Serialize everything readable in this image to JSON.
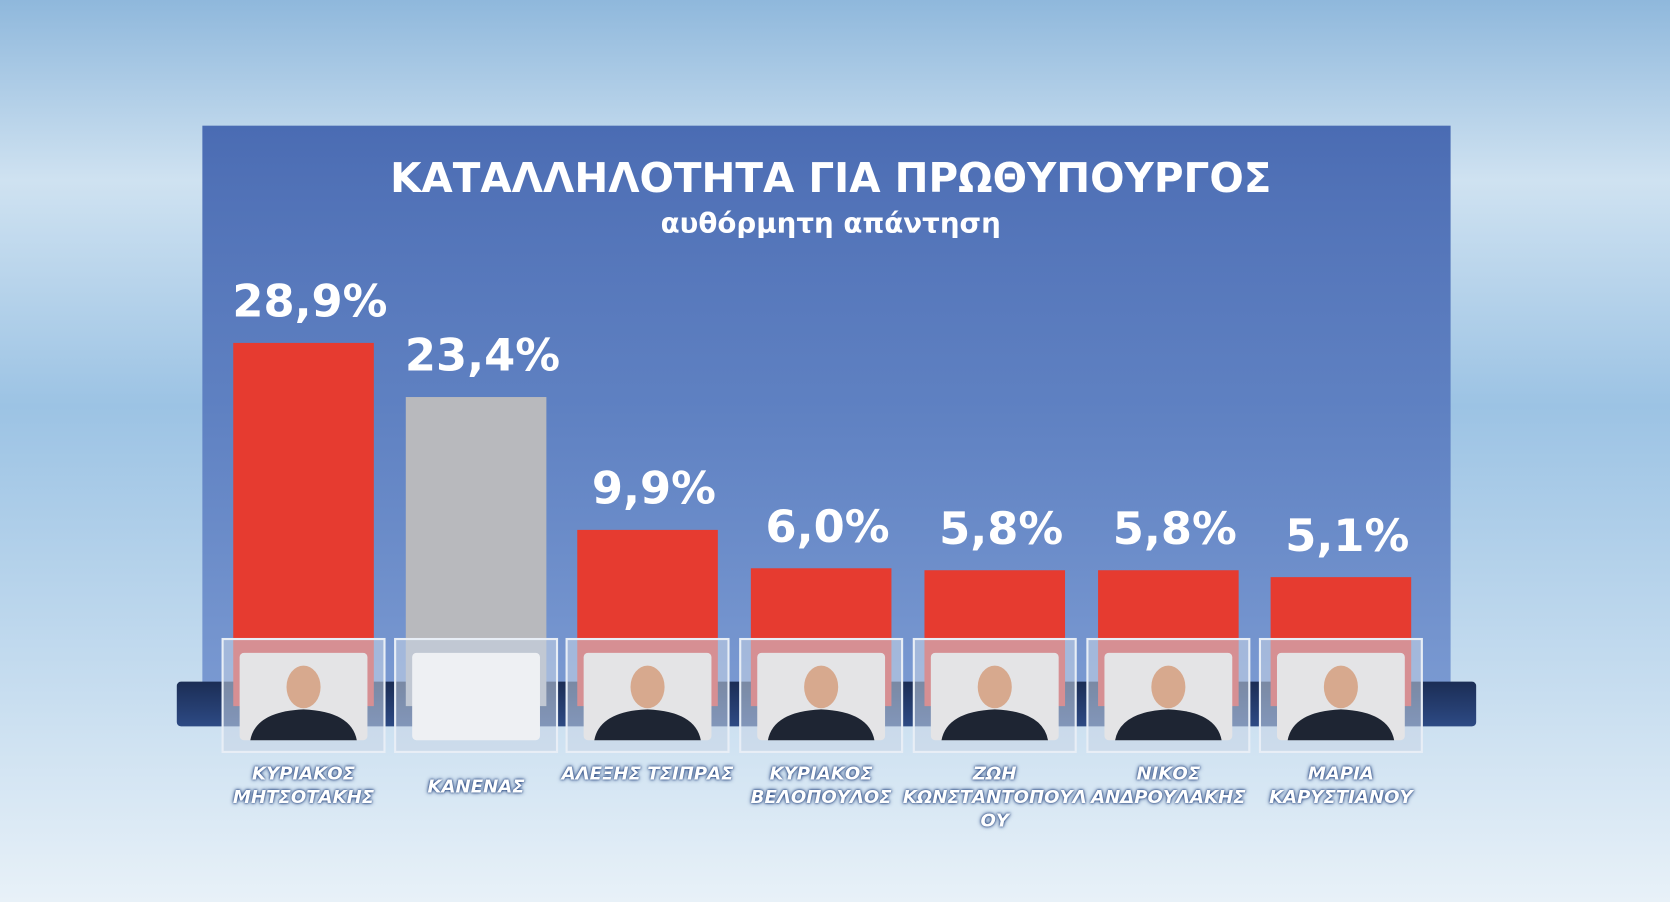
{
  "chart_data": {
    "type": "bar",
    "title": "ΚΑΤΑΛΛΗΛΟΤΗΤΑ  ΓΙΑ  ΠΡΩΘΥΠΟΥΡΓΟΣ",
    "subtitle": "αυθόρμητη  απάντηση",
    "categories": [
      "ΚΥΡΙΑΚΟΣ ΜΗΤΣΟΤΑΚΗΣ",
      "ΚΑΝΕΝΑΣ",
      "ΑΛΕΞΗΣ ΤΣΙΠΡΑΣ",
      "ΚΥΡΙΑΚΟΣ ΒΕΛΟΠΟΥΛΟΣ",
      "ΖΩΗ ΚΩΝΣΤΑΝΤΟΠΟΥΛΟΥ",
      "ΝΙΚΟΣ ΑΝΔΡΟΥΛΑΚΗΣ",
      "ΜΑΡΙΑ ΚΑΡΥΣΤΙΑΝΟΥ"
    ],
    "values": [
      28.9,
      23.4,
      9.9,
      6.0,
      5.8,
      5.8,
      5.1
    ],
    "value_labels": [
      "28,9%",
      "23,4%",
      "9,9%",
      "6,0%",
      "5,8%",
      "5,8%",
      "5,1%"
    ],
    "colors": [
      "#e63b30",
      "#b8b9bd",
      "#e63b30",
      "#e63b30",
      "#e63b30",
      "#e63b30",
      "#e63b30"
    ]
  }
}
